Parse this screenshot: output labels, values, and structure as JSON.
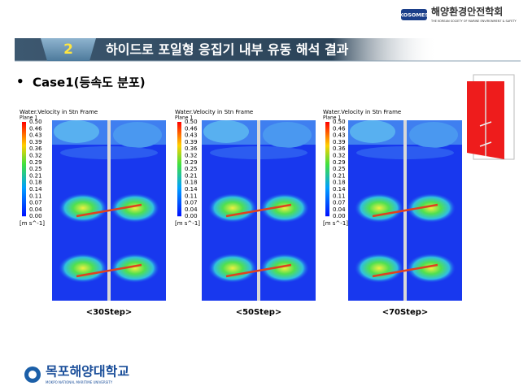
{
  "header": {
    "logo": "KOSOMES",
    "society": "해양환경안전학회",
    "society_en": "THE KOREAN SOCIETY OF MARINE ENVIRONMENT & SAFETY"
  },
  "section": {
    "number": "2",
    "title": "하이드로 포일형 응집기 내부 유동 해석 결과"
  },
  "bullet": "Case1(등속도 분포)",
  "panels": [
    {
      "legend_title": "Water.Velocity in Stn Frame",
      "plane": "Plane 1",
      "scale": [
        "0.50",
        "0.46",
        "0.43",
        "0.39",
        "0.36",
        "0.32",
        "0.29",
        "0.25",
        "0.21",
        "0.18",
        "0.14",
        "0.11",
        "0.07",
        "0.04",
        "0.00"
      ],
      "unit": "[m s^-1]",
      "caption": "<30Step>"
    },
    {
      "legend_title": "Water.Velocity in Stn Frame",
      "plane": "Plane 1",
      "scale": [
        "0.50",
        "0.46",
        "0.43",
        "0.39",
        "0.36",
        "0.32",
        "0.29",
        "0.25",
        "0.21",
        "0.18",
        "0.14",
        "0.11",
        "0.07",
        "0.04",
        "0.00"
      ],
      "unit": "[m s^-1]",
      "caption": "<50Step>"
    },
    {
      "legend_title": "Water.Velocity in Stn Frame",
      "plane": "Plane 1",
      "scale": [
        "0.50",
        "0.46",
        "0.43",
        "0.39",
        "0.36",
        "0.32",
        "0.29",
        "0.25",
        "0.21",
        "0.18",
        "0.14",
        "0.11",
        "0.07",
        "0.04",
        "0.00"
      ],
      "unit": "[m s^-1]",
      "caption": "<70Step>"
    }
  ],
  "footer": {
    "university": "목포해양대학교",
    "university_en": "MOKPO NATIONAL MARITIME UNIVERSITY"
  }
}
